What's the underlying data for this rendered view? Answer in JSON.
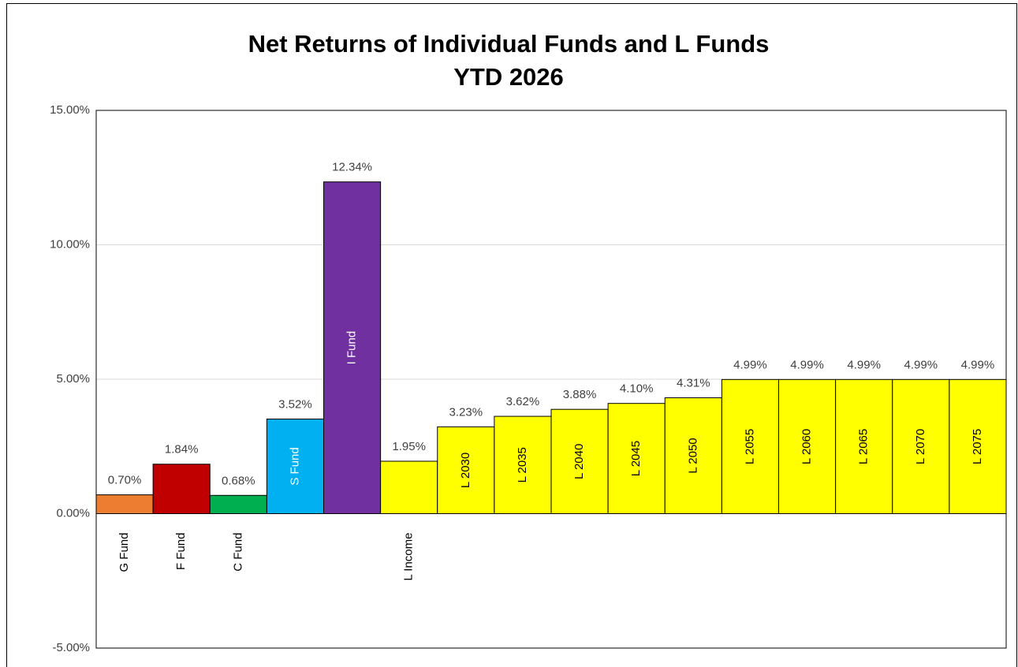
{
  "chart_data": {
    "type": "bar",
    "title": [
      "Net Returns of Individual Funds and L Funds",
      "YTD 2026"
    ],
    "categories": [
      "G Fund",
      "F Fund",
      "C Fund",
      "S Fund",
      "I Fund",
      "L Income",
      "L 2030",
      "L 2035",
      "L 2040",
      "L 2045",
      "L 2050",
      "L 2055",
      "L 2060",
      "L 2065",
      "L 2070",
      "L 2075"
    ],
    "values": [
      0.7,
      1.84,
      0.68,
      3.52,
      12.34,
      1.95,
      3.23,
      3.62,
      3.88,
      4.1,
      4.31,
      4.99,
      4.99,
      4.99,
      4.99,
      4.99
    ],
    "value_labels": [
      "0.70%",
      "1.84%",
      "0.68%",
      "3.52%",
      "12.34%",
      "1.95%",
      "3.23%",
      "3.62%",
      "3.88%",
      "4.10%",
      "4.31%",
      "4.99%",
      "4.99%",
      "4.99%",
      "4.99%",
      "4.99%"
    ],
    "colors": [
      "#ED7D31",
      "#C00000",
      "#00B050",
      "#00B0F0",
      "#7030A0",
      "#FFFF00",
      "#FFFF00",
      "#FFFF00",
      "#FFFF00",
      "#FFFF00",
      "#FFFF00",
      "#FFFF00",
      "#FFFF00",
      "#FFFF00",
      "#FFFF00",
      "#FFFF00"
    ],
    "ylim": [
      -5,
      15
    ],
    "yticks": [
      {
        "value": -5,
        "label": "-5.00%"
      },
      {
        "value": 0,
        "label": "0.00%"
      },
      {
        "value": 5,
        "label": "5.00%"
      },
      {
        "value": 10,
        "label": "10.00%"
      },
      {
        "value": 15,
        "label": "15.00%"
      }
    ],
    "grid": true
  }
}
